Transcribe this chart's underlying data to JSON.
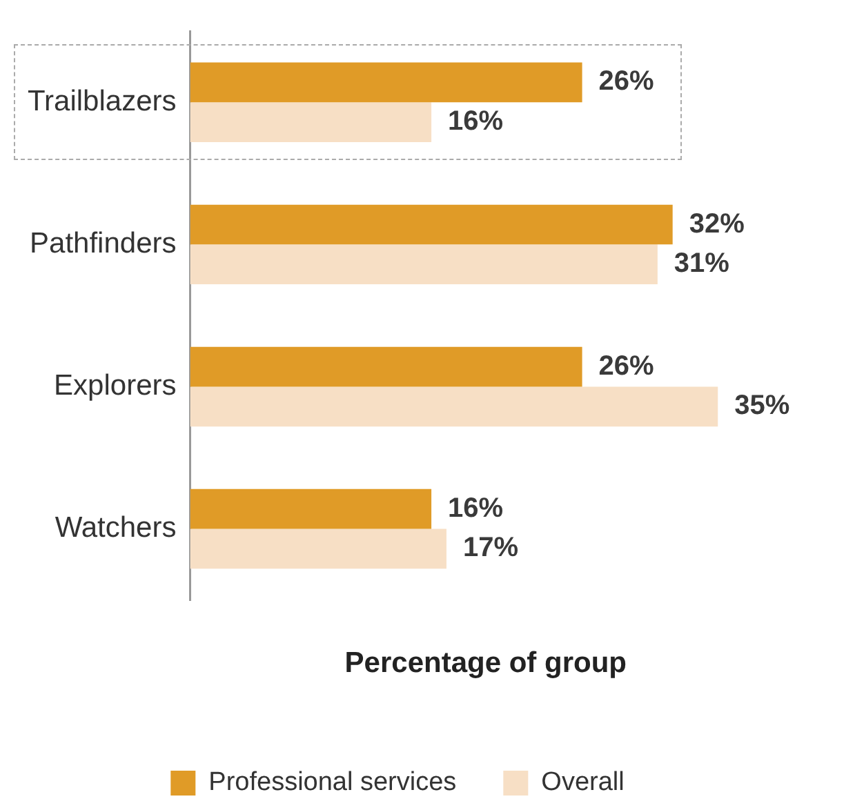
{
  "chart_data": {
    "type": "bar",
    "orientation": "horizontal",
    "xlabel": "Percentage of group",
    "categories": [
      "Trailblazers",
      "Pathfinders",
      "Explorers",
      "Watchers"
    ],
    "series": [
      {
        "name": "Professional services",
        "color": "#e09b27",
        "values": [
          26,
          32,
          26,
          16
        ],
        "value_labels": [
          "26%",
          "32%",
          "26%",
          "16%"
        ]
      },
      {
        "name": "Overall",
        "color": "#f7dfc5",
        "values": [
          16,
          31,
          35,
          17
        ],
        "value_labels": [
          "16%",
          "31%",
          "35%",
          "17%"
        ]
      }
    ],
    "legend": "bottom",
    "grid": false
  }
}
